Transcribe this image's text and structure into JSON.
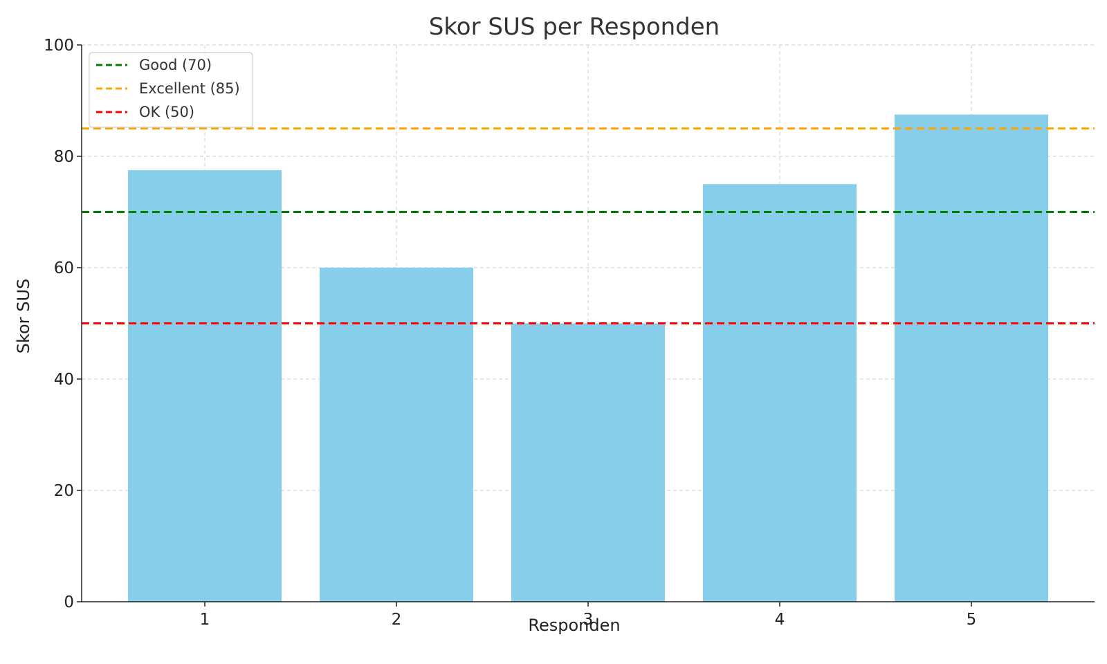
{
  "chart_data": {
    "type": "bar",
    "title": "Skor SUS per Responden",
    "xlabel": "Responden",
    "ylabel": "Skor SUS",
    "categories": [
      "1",
      "2",
      "3",
      "4",
      "5"
    ],
    "values": [
      77.5,
      60,
      50,
      75,
      87.5
    ],
    "bar_color": "#87CEEB",
    "ylim": [
      0,
      100
    ],
    "yticks": [
      0,
      20,
      40,
      60,
      80,
      100
    ],
    "grid": true,
    "legend_position": "top-left",
    "reference_lines": [
      {
        "label": "Good (70)",
        "value": 70,
        "color": "#008000"
      },
      {
        "label": "Excellent (85)",
        "value": 85,
        "color": "#FFA500"
      },
      {
        "label": "OK (50)",
        "value": 50,
        "color": "#FF0000"
      }
    ]
  }
}
